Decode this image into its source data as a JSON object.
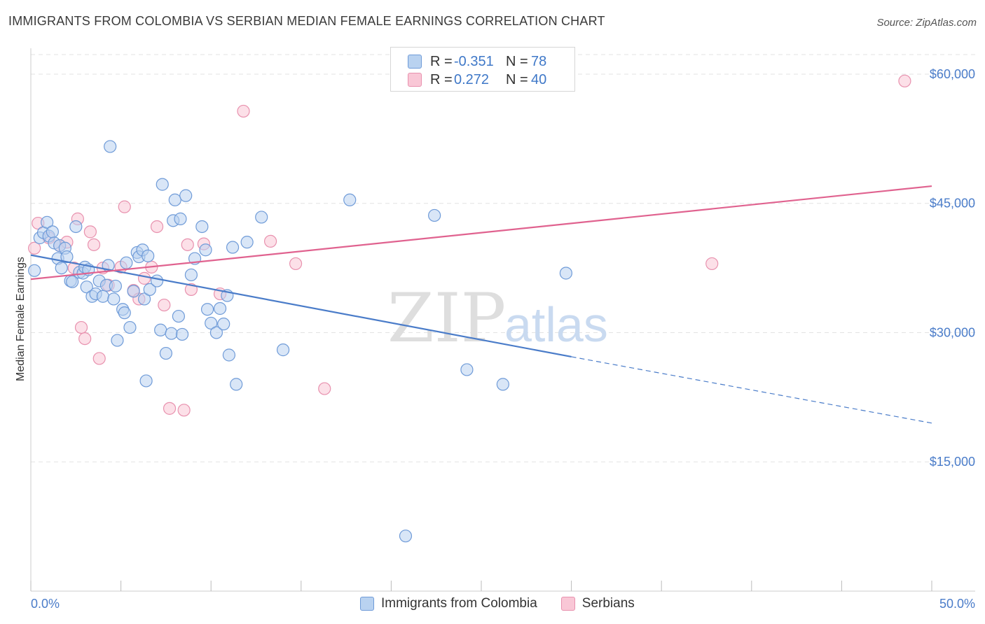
{
  "title": "IMMIGRANTS FROM COLOMBIA VS SERBIAN MEDIAN FEMALE EARNINGS CORRELATION CHART",
  "source": "Source: ZipAtlas.com",
  "watermark": {
    "zip": "ZIP",
    "atlas": "atlas"
  },
  "legend": {
    "rows": [
      {
        "r_label": "R =",
        "r_value": "-0.351",
        "n_label": "N =",
        "n_value": "78"
      },
      {
        "r_label": "R =",
        "r_value": "0.272",
        "n_label": "N =",
        "n_value": "40"
      }
    ]
  },
  "bottom_legend": [
    "Immigrants from Colombia",
    "Serbians"
  ],
  "chart_data": {
    "type": "scatter",
    "title": "IMMIGRANTS FROM COLOMBIA VS SERBIAN MEDIAN FEMALE EARNINGS CORRELATION CHART",
    "xlabel": "",
    "ylabel": "Median Female Earnings",
    "xlim": [
      0,
      50
    ],
    "ylim": [
      0,
      63000
    ],
    "x_tick_labels": [
      "0.0%",
      "50.0%"
    ],
    "y_ticks": [
      15000,
      30000,
      45000,
      60000
    ],
    "y_tick_labels": [
      "$15,000",
      "$30,000",
      "$45,000",
      "$60,000"
    ],
    "grid": true,
    "colors": {
      "blue": "#4a7cc9",
      "blue_fill": "#b9d2f0",
      "pink": "#e0628f",
      "pink_fill": "#f9c7d6"
    },
    "series": [
      {
        "name": "Immigrants from Colombia",
        "color": "#4a7cc9",
        "trend": {
          "x0": 0,
          "y0": 39000,
          "x1": 30,
          "y1": 27200,
          "dash_to_x": 50,
          "dash_to_y": 19500
        },
        "points": [
          [
            0.2,
            37200
          ],
          [
            0.5,
            41000
          ],
          [
            0.7,
            41600
          ],
          [
            0.9,
            42800
          ],
          [
            1.0,
            41200
          ],
          [
            1.2,
            41700
          ],
          [
            1.3,
            40400
          ],
          [
            1.5,
            38600
          ],
          [
            1.6,
            40100
          ],
          [
            1.7,
            37500
          ],
          [
            1.9,
            39800
          ],
          [
            2.0,
            38800
          ],
          [
            2.2,
            36000
          ],
          [
            2.3,
            35900
          ],
          [
            2.5,
            42300
          ],
          [
            2.7,
            37000
          ],
          [
            2.9,
            36900
          ],
          [
            3.0,
            37600
          ],
          [
            3.1,
            35300
          ],
          [
            3.2,
            37300
          ],
          [
            3.4,
            34200
          ],
          [
            3.6,
            34500
          ],
          [
            3.8,
            36000
          ],
          [
            4.0,
            34200
          ],
          [
            4.2,
            35500
          ],
          [
            4.3,
            37800
          ],
          [
            4.4,
            51600
          ],
          [
            4.6,
            33900
          ],
          [
            4.7,
            35400
          ],
          [
            4.8,
            29100
          ],
          [
            5.1,
            32700
          ],
          [
            5.2,
            32300
          ],
          [
            5.3,
            38100
          ],
          [
            5.5,
            30600
          ],
          [
            5.7,
            34800
          ],
          [
            5.9,
            39300
          ],
          [
            6.0,
            38800
          ],
          [
            6.2,
            39600
          ],
          [
            6.3,
            33900
          ],
          [
            6.4,
            24400
          ],
          [
            6.5,
            38900
          ],
          [
            6.6,
            35000
          ],
          [
            7.0,
            36000
          ],
          [
            7.2,
            30300
          ],
          [
            7.3,
            47200
          ],
          [
            7.5,
            27600
          ],
          [
            7.8,
            29900
          ],
          [
            7.9,
            43000
          ],
          [
            8.0,
            45400
          ],
          [
            8.2,
            31900
          ],
          [
            8.3,
            43200
          ],
          [
            8.4,
            29800
          ],
          [
            8.6,
            45900
          ],
          [
            8.9,
            36700
          ],
          [
            9.1,
            38600
          ],
          [
            9.5,
            42300
          ],
          [
            9.7,
            39600
          ],
          [
            9.8,
            32700
          ],
          [
            10.0,
            31100
          ],
          [
            10.3,
            30000
          ],
          [
            10.5,
            32800
          ],
          [
            10.7,
            31000
          ],
          [
            10.9,
            34300
          ],
          [
            11.0,
            27400
          ],
          [
            11.2,
            39900
          ],
          [
            11.4,
            24000
          ],
          [
            12.0,
            40500
          ],
          [
            12.8,
            43400
          ],
          [
            14.0,
            28000
          ],
          [
            17.7,
            45400
          ],
          [
            20.8,
            6400
          ],
          [
            22.4,
            43600
          ],
          [
            24.2,
            25700
          ],
          [
            26.2,
            24000
          ],
          [
            29.7,
            36900
          ]
        ]
      },
      {
        "name": "Serbians",
        "color": "#e0628f",
        "trend": {
          "x0": 0,
          "y0": 36200,
          "x1": 50,
          "y1": 47000
        },
        "points": [
          [
            0.2,
            39800
          ],
          [
            0.4,
            42700
          ],
          [
            1.0,
            41000
          ],
          [
            1.6,
            40100
          ],
          [
            2.0,
            40500
          ],
          [
            2.4,
            37500
          ],
          [
            2.6,
            43200
          ],
          [
            2.8,
            30600
          ],
          [
            3.0,
            29300
          ],
          [
            3.3,
            41700
          ],
          [
            3.5,
            40200
          ],
          [
            3.8,
            27000
          ],
          [
            4.0,
            37500
          ],
          [
            4.3,
            35500
          ],
          [
            5.0,
            37600
          ],
          [
            5.2,
            44600
          ],
          [
            5.7,
            34900
          ],
          [
            6.0,
            33900
          ],
          [
            6.3,
            36300
          ],
          [
            6.7,
            37600
          ],
          [
            7.0,
            42300
          ],
          [
            7.4,
            33200
          ],
          [
            7.7,
            21200
          ],
          [
            8.5,
            21000
          ],
          [
            8.7,
            40200
          ],
          [
            8.9,
            35000
          ],
          [
            9.6,
            40300
          ],
          [
            10.5,
            34500
          ],
          [
            11.8,
            55700
          ],
          [
            13.3,
            40600
          ],
          [
            14.7,
            38000
          ],
          [
            16.3,
            23500
          ],
          [
            37.8,
            38000
          ],
          [
            48.5,
            59200
          ]
        ]
      }
    ]
  }
}
